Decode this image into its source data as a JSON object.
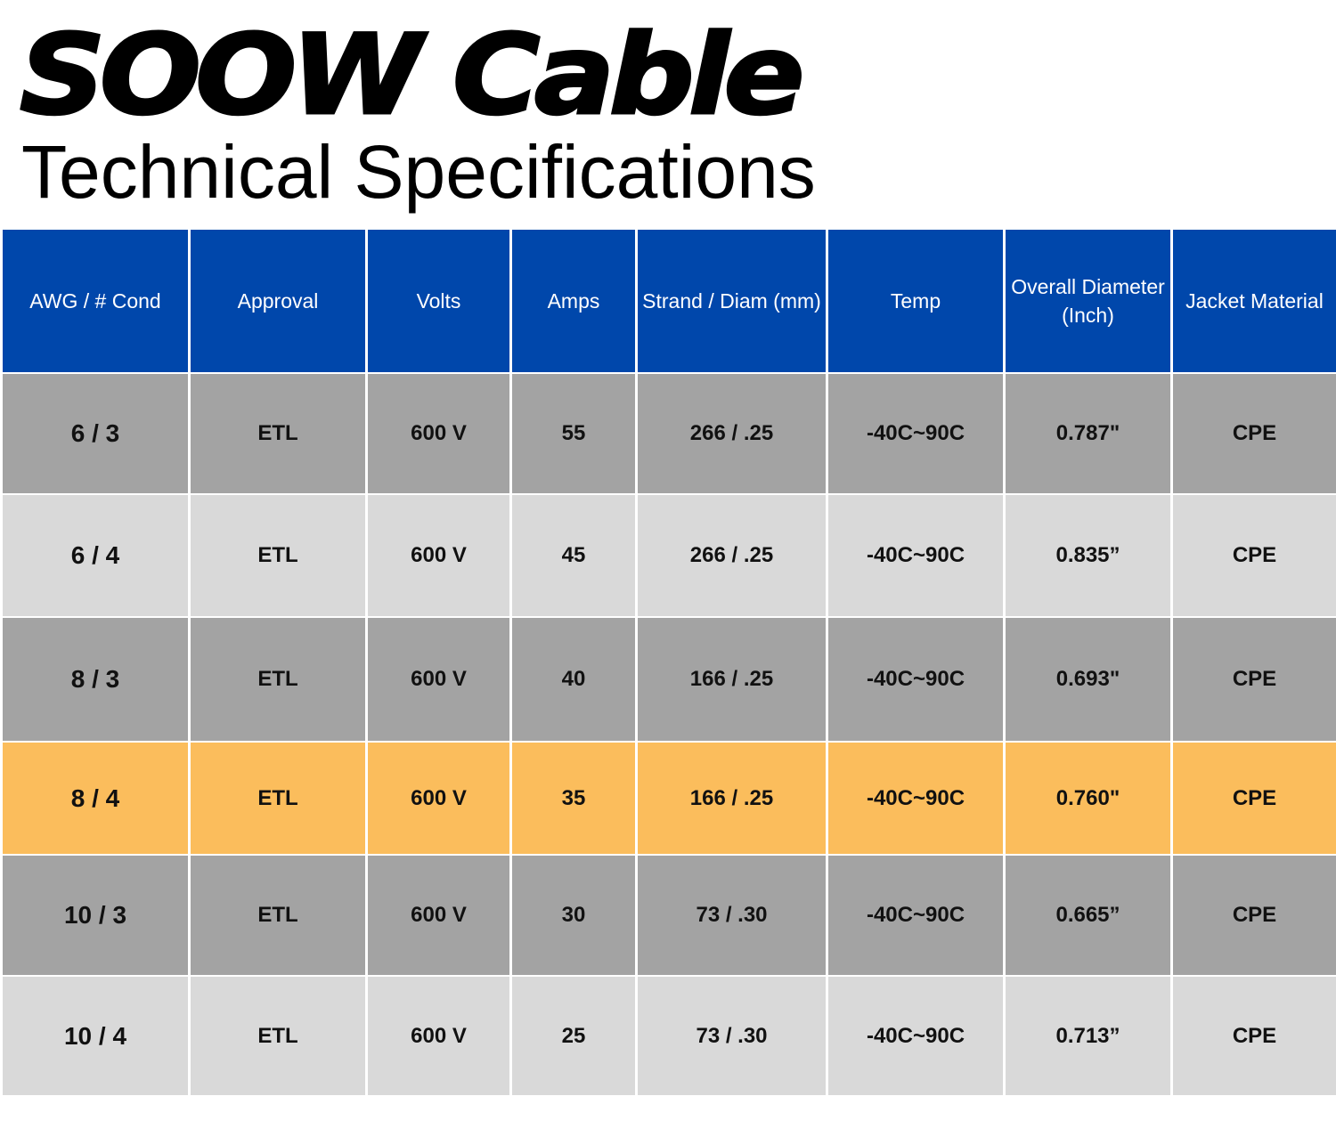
{
  "title": "SOOW Cable",
  "subtitle": "Technical Specifications",
  "colors": {
    "header": "#0047ab",
    "row_dark": "#a3a3a3",
    "row_light": "#d9d9d9",
    "row_highlight": "#fbbd5c"
  },
  "chart_data": {
    "type": "table",
    "title": "SOOW Cable",
    "subtitle": "Technical Specifications",
    "columns": [
      "AWG / # Cond",
      "Approval",
      "Volts",
      "Amps",
      "Strand / Diam (mm)",
      "Temp",
      "Overall Diameter (Inch)",
      "Jacket Material"
    ],
    "rows": [
      [
        "6 / 3",
        "ETL",
        "600 V",
        "55",
        "266 / .25",
        "-40C~90C",
        "0.787\"",
        "CPE"
      ],
      [
        "6 / 4",
        "ETL",
        "600 V",
        "45",
        "266 / .25",
        "-40C~90C",
        "0.835”",
        "CPE"
      ],
      [
        "8 / 3",
        "ETL",
        "600 V",
        "40",
        "166 / .25",
        "-40C~90C",
        "0.693\"",
        "CPE"
      ],
      [
        "8 / 4",
        "ETL",
        "600 V",
        "35",
        "166 / .25",
        "-40C~90C",
        "0.760\"",
        "CPE"
      ],
      [
        "10 / 3",
        "ETL",
        "600 V",
        "30",
        "73 / .30",
        "-40C~90C",
        "0.665”",
        "CPE"
      ],
      [
        "10 / 4",
        "ETL",
        "600 V",
        "25",
        "73 / .30",
        "-40C~90C",
        "0.713”",
        "CPE"
      ]
    ],
    "row_styles": [
      "dark",
      "light",
      "dark",
      "highlight",
      "dark",
      "light"
    ]
  }
}
